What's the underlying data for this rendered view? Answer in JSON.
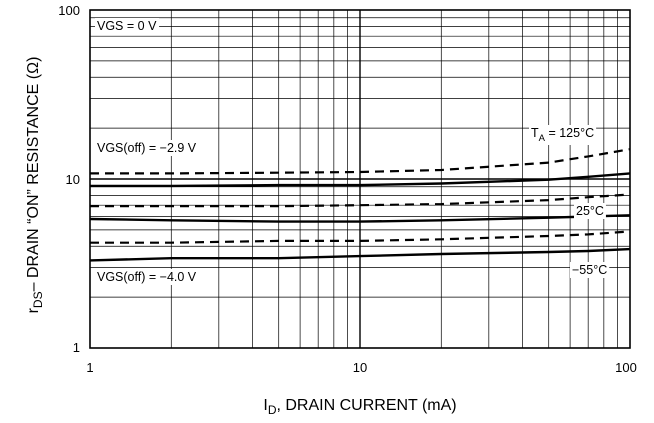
{
  "chart_data": {
    "type": "line",
    "x_scale": "log",
    "y_scale": "log",
    "xlim": [
      1,
      100
    ],
    "ylim": [
      1,
      100
    ],
    "grid": true,
    "legend": "",
    "x_ticks": [
      "1",
      "10",
      "100"
    ],
    "y_ticks": [
      "1",
      "10",
      "100"
    ],
    "xlabel": {
      "main": "I",
      "sub": "D",
      "rest": ", DRAIN CURRENT (mA)"
    },
    "ylabel": {
      "main": "r",
      "sub": "DS",
      "rest": "– DRAIN “ON” RESISTANCE  (Ω)"
    },
    "annotations": {
      "vgs_zero": "VGS = 0 V",
      "vgs_off_29": "VGS(off) = −2.9 V",
      "vgs_off_40": "VGS(off) = −4.0 V",
      "ta_main": "T",
      "ta_sub": "A",
      "ta_rest": " = 125°C",
      "t25": "25°C",
      "tm55": "−55°C"
    },
    "series": [
      {
        "style": "dashed",
        "x": [
          1,
          2,
          5,
          10,
          20,
          50,
          70,
          100
        ],
        "y": [
          10.8,
          10.8,
          10.9,
          11.0,
          11.3,
          12.5,
          13.6,
          15.0
        ]
      },
      {
        "style": "solid",
        "x": [
          1,
          2,
          5,
          10,
          20,
          50,
          70,
          100
        ],
        "y": [
          9.1,
          9.1,
          9.2,
          9.2,
          9.4,
          9.9,
          10.3,
          10.8
        ]
      },
      {
        "style": "dashed",
        "x": [
          1,
          2,
          5,
          10,
          20,
          50,
          70,
          100
        ],
        "y": [
          6.9,
          6.9,
          6.9,
          7.0,
          7.1,
          7.5,
          7.8,
          8.1
        ]
      },
      {
        "style": "solid",
        "x": [
          1,
          2,
          5,
          10,
          20,
          50,
          70,
          100
        ],
        "y": [
          5.8,
          5.7,
          5.6,
          5.6,
          5.7,
          5.9,
          6.0,
          6.1
        ]
      },
      {
        "style": "dashed",
        "x": [
          1,
          2,
          5,
          10,
          20,
          50,
          70,
          100
        ],
        "y": [
          4.2,
          4.2,
          4.3,
          4.3,
          4.4,
          4.6,
          4.7,
          4.9
        ]
      },
      {
        "style": "solid",
        "x": [
          1,
          2,
          5,
          10,
          20,
          50,
          70,
          100
        ],
        "y": [
          3.3,
          3.4,
          3.4,
          3.5,
          3.6,
          3.7,
          3.75,
          3.85
        ]
      }
    ]
  }
}
